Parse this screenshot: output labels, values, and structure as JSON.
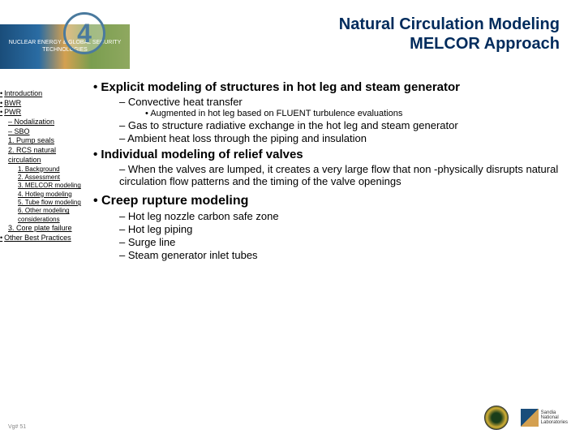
{
  "circle_number": "4",
  "title_line1": "Natural Circulation Modeling",
  "title_line2": "MELCOR Approach",
  "banner_line1": "NUCLEAR ENERGY & GLOBAL SECURITY",
  "banner_line2": "TECHNOLOGIES",
  "content": {
    "b1": "Explicit modeling of structures in hot leg and steam generator",
    "b1_1": "Convective heat transfer",
    "b1_1_1": "Augmented in hot leg based on FLUENT turbulence evaluations",
    "b1_2": "Gas to structure radiative exchange in the hot leg and steam generator",
    "b1_3": "Ambient heat loss through the piping and insulation",
    "b2": "Individual modeling of relief valves",
    "b2_1": "When the valves are lumped, it creates a very large flow that non -physically disrupts natural circulation flow patterns and the timing of the valve openings",
    "b3": "Creep rupture modeling",
    "b3_1": "Hot leg nozzle carbon safe zone",
    "b3_2": "Hot leg piping",
    "b3_3": "Surge line",
    "b3_4": "Steam generator inlet tubes"
  },
  "nav": {
    "n1": "Introduction",
    "n2": "BWR",
    "n3": "PWR",
    "n3_1": "Nodalization",
    "n3_2": "SBO",
    "n3_2_1": "1. Pump seals",
    "n3_2_2": "2. RCS natural circulation",
    "n3_2_2_1": "1. Background",
    "n3_2_2_2": "2. Assessment",
    "n3_2_2_3": "3. MELCOR modeling",
    "n3_2_2_4": "4. Hotleg modeling",
    "n3_2_2_5": "5. Tube flow modeling",
    "n3_2_2_6": "6. Other modeling considerations",
    "n3_2_3": "3. Core plate failure",
    "n4": "Other Best Practices"
  },
  "page_marker": "Vg# 51",
  "sandia_label": "Sandia\nNational\nLaboratories"
}
